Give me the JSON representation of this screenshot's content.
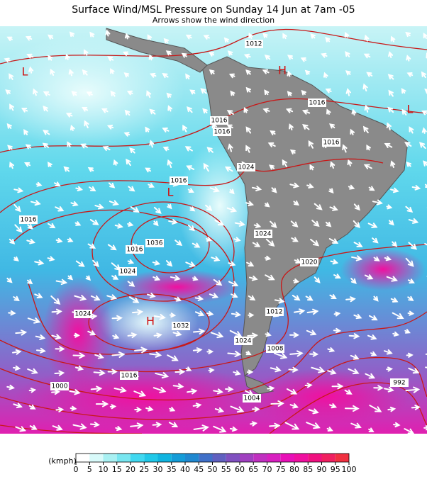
{
  "header": {
    "title": "Surface Wind/MSL Pressure on Sunday 14 Jun at 7am -05",
    "subtitle": "Arrows show the wind direction"
  },
  "map": {
    "pressure_labels": [
      "1012",
      "1016",
      "1016",
      "1016",
      "1016",
      "1024",
      "1016",
      "1016",
      "1036",
      "1016",
      "1024",
      "1024",
      "1020",
      "1024",
      "1032",
      "1012",
      "1024",
      "1008",
      "1016",
      "1000",
      "1004",
      "992"
    ],
    "pressure_centers": [
      "H",
      "L",
      "H",
      "L",
      "L"
    ]
  },
  "legend": {
    "unit": "(kmph)",
    "ticks": [
      0,
      5,
      10,
      15,
      20,
      25,
      30,
      35,
      40,
      45,
      50,
      55,
      60,
      65,
      70,
      75,
      80,
      85,
      90,
      95,
      100
    ]
  }
}
